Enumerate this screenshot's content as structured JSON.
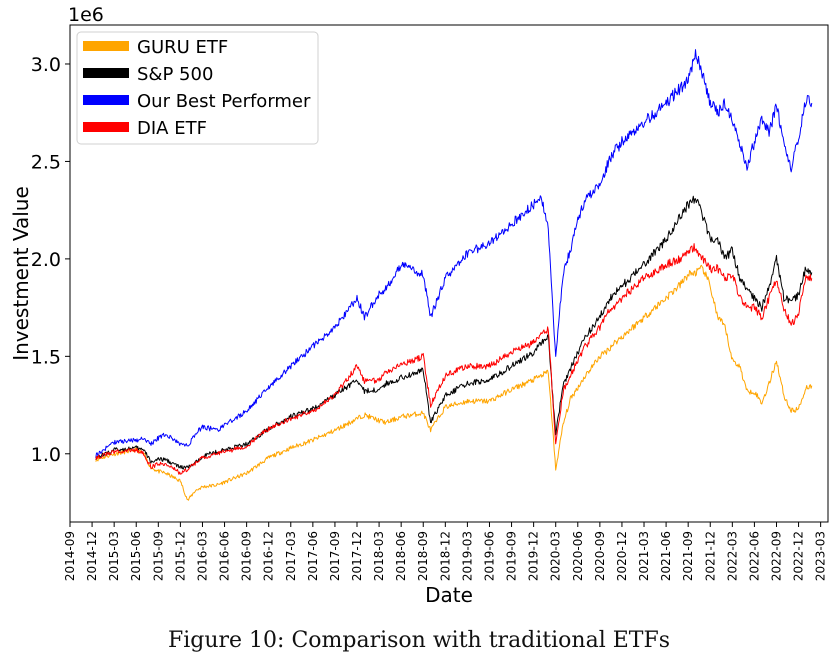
{
  "chart_data": {
    "type": "line",
    "title": "",
    "xlabel": "Date",
    "ylabel": "Investment Value",
    "y_offset_label": "1e6",
    "ylim": [
      0.65,
      3.2
    ],
    "y_ticks": [
      1.0,
      1.5,
      2.0,
      2.5,
      3.0
    ],
    "y_tick_labels": [
      "1.0",
      "1.5",
      "2.0",
      "2.5",
      "3.0"
    ],
    "x_range_months": [
      0,
      103
    ],
    "x_ticks": [
      "2014-09",
      "2014-12",
      "2015-03",
      "2015-06",
      "2015-09",
      "2015-12",
      "2016-03",
      "2016-06",
      "2016-09",
      "2016-12",
      "2017-03",
      "2017-06",
      "2017-09",
      "2017-12",
      "2018-03",
      "2018-06",
      "2018-09",
      "2018-12",
      "2019-03",
      "2019-06",
      "2019-09",
      "2019-12",
      "2020-03",
      "2020-06",
      "2020-09",
      "2020-12",
      "2021-03",
      "2021-06",
      "2021-09",
      "2021-12",
      "2022-03",
      "2022-06",
      "2022-09",
      "2022-12",
      "2023-03"
    ],
    "x_origin": "2014-09",
    "legend_position": "top-left",
    "grid": false,
    "series": [
      {
        "name": "GURU ETF",
        "color": "#ffa500",
        "x": [
          3.5,
          6,
          9,
          10,
          11,
          12,
          13,
          15,
          16,
          17,
          18,
          20,
          24,
          27,
          30,
          33,
          36,
          39,
          40,
          42,
          43,
          45,
          48,
          49,
          51,
          54,
          57,
          60,
          63,
          64,
          65,
          66,
          67,
          68,
          69,
          70,
          72,
          73,
          74,
          75,
          78,
          81,
          83,
          84,
          85,
          86,
          87,
          88,
          89,
          90,
          91,
          92,
          93,
          94,
          95,
          96,
          97,
          98,
          99,
          100,
          100.8
        ],
        "y": [
          0.97,
          1.0,
          1.02,
          1.0,
          0.93,
          0.91,
          0.9,
          0.86,
          0.76,
          0.81,
          0.83,
          0.84,
          0.9,
          0.98,
          1.03,
          1.07,
          1.12,
          1.18,
          1.2,
          1.17,
          1.16,
          1.19,
          1.21,
          1.12,
          1.24,
          1.27,
          1.27,
          1.33,
          1.38,
          1.4,
          1.42,
          0.92,
          1.15,
          1.28,
          1.34,
          1.4,
          1.5,
          1.53,
          1.57,
          1.6,
          1.7,
          1.8,
          1.87,
          1.92,
          1.93,
          1.95,
          1.86,
          1.7,
          1.65,
          1.48,
          1.45,
          1.32,
          1.32,
          1.26,
          1.36,
          1.48,
          1.3,
          1.22,
          1.23,
          1.34,
          1.35
        ]
      },
      {
        "name": "S&P 500",
        "color": "#000000",
        "x": [
          3.5,
          6,
          9,
          10,
          11,
          12,
          13,
          15,
          16,
          17,
          18,
          20,
          24,
          27,
          30,
          33,
          36,
          39,
          40,
          42,
          43,
          45,
          48,
          49,
          51,
          54,
          57,
          60,
          63,
          64,
          65,
          66,
          67,
          68,
          69,
          70,
          72,
          73,
          74,
          75,
          78,
          81,
          83,
          84,
          85,
          86,
          87,
          88,
          89,
          90,
          91,
          92,
          93,
          94,
          95,
          96,
          97,
          98,
          99,
          100,
          100.8
        ],
        "y": [
          0.98,
          1.02,
          1.03,
          1.02,
          0.96,
          0.97,
          0.97,
          0.93,
          0.93,
          0.95,
          0.99,
          1.01,
          1.05,
          1.13,
          1.19,
          1.23,
          1.3,
          1.38,
          1.32,
          1.33,
          1.36,
          1.39,
          1.43,
          1.16,
          1.3,
          1.36,
          1.38,
          1.45,
          1.52,
          1.57,
          1.6,
          1.1,
          1.35,
          1.44,
          1.52,
          1.6,
          1.7,
          1.78,
          1.82,
          1.86,
          1.97,
          2.1,
          2.22,
          2.28,
          2.31,
          2.22,
          2.1,
          2.1,
          2.0,
          2.05,
          1.9,
          1.85,
          1.8,
          1.75,
          1.86,
          2.0,
          1.8,
          1.78,
          1.82,
          1.96,
          1.93
        ]
      },
      {
        "name": "Our Best Performer",
        "color": "#0000ff",
        "x": [
          3.5,
          6,
          9,
          10,
          11,
          12,
          13,
          15,
          16,
          17,
          18,
          20,
          24,
          27,
          30,
          33,
          36,
          39,
          40,
          42,
          43,
          45,
          48,
          49,
          51,
          54,
          57,
          60,
          63,
          64,
          65,
          66,
          67,
          68,
          69,
          70,
          72,
          73,
          74,
          75,
          78,
          81,
          83,
          84,
          85,
          86,
          87,
          88,
          89,
          90,
          91,
          92,
          93,
          94,
          95,
          96,
          97,
          98,
          99,
          100,
          100.8
        ],
        "y": [
          0.99,
          1.06,
          1.07,
          1.08,
          1.05,
          1.08,
          1.1,
          1.05,
          1.04,
          1.1,
          1.14,
          1.12,
          1.22,
          1.34,
          1.45,
          1.55,
          1.65,
          1.8,
          1.7,
          1.82,
          1.85,
          1.97,
          1.92,
          1.7,
          1.9,
          2.03,
          2.08,
          2.18,
          2.28,
          2.32,
          2.15,
          1.5,
          1.92,
          2.05,
          2.2,
          2.3,
          2.38,
          2.48,
          2.55,
          2.6,
          2.7,
          2.8,
          2.88,
          2.92,
          3.05,
          2.95,
          2.8,
          2.75,
          2.8,
          2.7,
          2.6,
          2.48,
          2.6,
          2.72,
          2.65,
          2.78,
          2.6,
          2.47,
          2.62,
          2.82,
          2.8
        ]
      },
      {
        "name": "DIA ETF",
        "color": "#ff0000",
        "x": [
          3.5,
          6,
          9,
          10,
          11,
          12,
          13,
          15,
          16,
          17,
          18,
          20,
          24,
          27,
          30,
          33,
          36,
          39,
          40,
          42,
          43,
          45,
          48,
          49,
          51,
          54,
          57,
          60,
          63,
          64,
          65,
          66,
          67,
          68,
          69,
          70,
          72,
          73,
          74,
          75,
          78,
          81,
          83,
          84,
          85,
          86,
          87,
          88,
          89,
          90,
          91,
          92,
          93,
          94,
          95,
          96,
          97,
          98,
          99,
          100,
          100.8
        ],
        "y": [
          0.98,
          1.01,
          1.02,
          1.0,
          0.93,
          0.95,
          0.95,
          0.9,
          0.92,
          0.95,
          0.98,
          1.0,
          1.04,
          1.13,
          1.18,
          1.22,
          1.3,
          1.45,
          1.37,
          1.38,
          1.42,
          1.46,
          1.5,
          1.25,
          1.4,
          1.45,
          1.45,
          1.52,
          1.57,
          1.61,
          1.64,
          1.05,
          1.32,
          1.4,
          1.48,
          1.55,
          1.65,
          1.72,
          1.75,
          1.8,
          1.9,
          1.97,
          2.0,
          2.04,
          2.06,
          2.0,
          1.95,
          1.95,
          1.9,
          1.92,
          1.8,
          1.75,
          1.75,
          1.7,
          1.8,
          1.9,
          1.75,
          1.66,
          1.72,
          1.9,
          1.9
        ]
      }
    ]
  },
  "caption": "Figure 10: Comparison with traditional ETFs"
}
